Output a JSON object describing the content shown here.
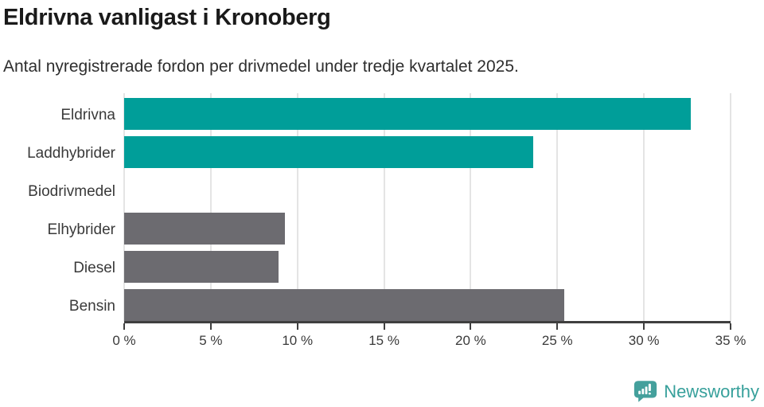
{
  "header": {
    "title": "Eldrivna vanligast i Kronoberg",
    "subtitle": "Antal nyregistrerade fordon per drivmedel under tredje kvartalet 2025."
  },
  "chart_data": {
    "type": "bar",
    "orientation": "horizontal",
    "title": "Eldrivna vanligast i Kronoberg",
    "subtitle": "Antal nyregistrerade fordon per drivmedel under tredje kvartalet 2025.",
    "categories": [
      "Eldrivna",
      "Laddhybrider",
      "Biodrivmedel",
      "Elhybrider",
      "Diesel",
      "Bensin"
    ],
    "values": [
      32.7,
      23.6,
      0,
      9.3,
      8.9,
      25.4
    ],
    "unit": "%",
    "bar_colors": [
      "#009e99",
      "#009e99",
      "#009e99",
      "#6c6b70",
      "#6c6b70",
      "#6c6b70"
    ],
    "xlim": [
      0,
      35
    ],
    "x_ticks": [
      0,
      5,
      10,
      15,
      20,
      25,
      30,
      35
    ],
    "x_tick_suffix": " %",
    "xlabel": "",
    "ylabel": "",
    "grid": true,
    "legend": false,
    "data_labels": false
  },
  "branding": {
    "logo_text": "Newsworthy",
    "logo_icon": "newsworthy-speech-bubble-chart-icon",
    "logo_color": "#37a09b"
  },
  "colors": {
    "highlight_teal": "#009e99",
    "neutral_gray": "#6c6b70",
    "gridline": "#e4e4e4",
    "axis": "#3f3f3f",
    "label_text": "#3a3a3a",
    "title_text": "#1a1a1a"
  }
}
